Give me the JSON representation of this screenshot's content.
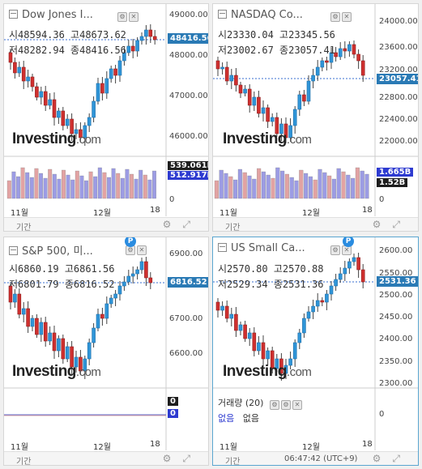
{
  "panels": [
    {
      "title": "Dow Jones I...",
      "ohlc_line1": "시48594.36  고48673.62",
      "ohlc_line2": "저48282.94  종48416.56",
      "last_price": "48416.56",
      "y_ticks": [
        "49000.00",
        "48000.00",
        "47000.00",
        "46000.00"
      ],
      "vol_tags": [
        "539.061M",
        "512.917M"
      ],
      "vol_zero": "0",
      "x_labels": [
        "11월",
        "12월",
        "18"
      ],
      "bottom_label": "기간",
      "logo_text": "Investing",
      "logo_suffix": ".com"
    },
    {
      "title": "NASDAQ Co...",
      "ohlc_line1": "시23330.04  고23345.56",
      "ohlc_line2": "저23002.67  종23057.41",
      "last_price": "23057.41",
      "y_ticks": [
        "24000.00",
        "23600.00",
        "23200.00",
        "22800.00",
        "22400.00",
        "22000.00"
      ],
      "vol_tags": [
        "1.665B",
        "1.52B"
      ],
      "vol_zero": "0",
      "x_labels": [
        "11월",
        "12월",
        "18"
      ],
      "bottom_label": "기간",
      "logo_text": "Investing",
      "logo_suffix": ".com"
    },
    {
      "title": "S&P 500, 미...",
      "ohlc_line1": "시6860.19  고6861.56",
      "ohlc_line2": "저6801.79  종6816.52",
      "last_price": "6816.52",
      "y_ticks": [
        "6900.00",
        "6800.00",
        "6700.00",
        "6600.00"
      ],
      "vol_tags": [
        "0",
        "0"
      ],
      "x_labels": [
        "11월",
        "12월",
        "18"
      ],
      "bottom_label": "기간",
      "logo_text": "Investing",
      "logo_suffix": ".com",
      "badge": "P"
    },
    {
      "title": "US Small Ca...",
      "ohlc_line1": "시2570.80  고2570.88",
      "ohlc_line2": "저2529.34  종2531.36",
      "last_price": "2531.36",
      "y_ticks": [
        "2600.00",
        "2550.00",
        "2500.00",
        "2450.00",
        "2400.00",
        "2350.00",
        "2300.00"
      ],
      "vol_title": "거래량 (20)",
      "vol_none_1": "없음",
      "vol_none_2": "없음",
      "vol_zero": "0",
      "x_labels": [
        "11월",
        "12월",
        "18"
      ],
      "bottom_label": "기간",
      "clock": "06:47:42 (UTC+9)",
      "logo_text": "Investing",
      "logo_suffix": ".com",
      "badge": "P"
    }
  ],
  "colors": {
    "up": "#2f95d8",
    "down": "#d0302f",
    "vol_up": "#9c9ce4",
    "vol_down": "#e2a3a3",
    "price_tag": "#2a7ab5"
  },
  "icons": [
    "minimize-icon",
    "settings-icon",
    "close-icon",
    "gear-icon",
    "expand-icon"
  ]
}
